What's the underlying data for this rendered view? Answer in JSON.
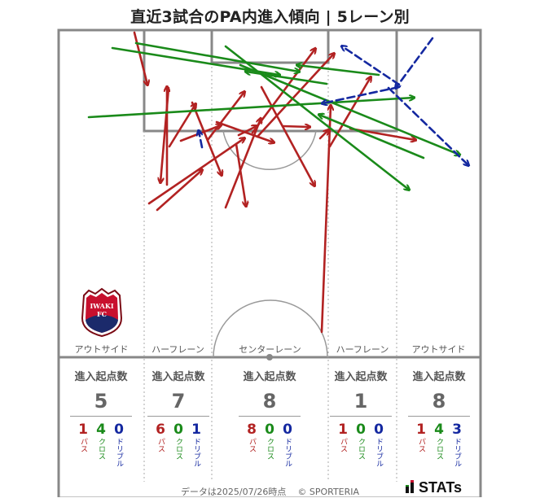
{
  "title": "直近3試合のPA内進入傾向 | 5レーン別",
  "footer": {
    "date_text": "データは2025/07/26時点",
    "copyright": "© SPORTERIA",
    "brand": "STATs"
  },
  "crest": {
    "text_top": "IWAKI",
    "text_bottom": "FC",
    "colors": {
      "primary": "#c8102e",
      "secondary": "#1b2a6b"
    }
  },
  "legend_colors": {
    "pass": "#b22222",
    "cross": "#1a8a1a",
    "dribble": "#1428a0"
  },
  "lanes": [
    {
      "id": "out-left",
      "label": "アウトサイド",
      "heading": "進入起点数",
      "total": "5",
      "breakdown": [
        {
          "value": "1",
          "type": "パス"
        },
        {
          "value": "4",
          "type": "クロス"
        },
        {
          "value": "0",
          "type": "ドリブル"
        }
      ]
    },
    {
      "id": "half-left",
      "label": "ハーフレーン",
      "heading": "進入起点数",
      "total": "7",
      "breakdown": [
        {
          "value": "6",
          "type": "パス"
        },
        {
          "value": "0",
          "type": "クロス"
        },
        {
          "value": "1",
          "type": "ドリブル"
        }
      ]
    },
    {
      "id": "center",
      "label": "センターレーン",
      "heading": "進入起点数",
      "total": "8",
      "breakdown": [
        {
          "value": "8",
          "type": "パス"
        },
        {
          "value": "0",
          "type": "クロス"
        },
        {
          "value": "0",
          "type": "ドリブル"
        }
      ]
    },
    {
      "id": "half-right",
      "label": "ハーフレーン",
      "heading": "進入起点数",
      "total": "1",
      "breakdown": [
        {
          "value": "1",
          "type": "パス"
        },
        {
          "value": "0",
          "type": "クロス"
        },
        {
          "value": "0",
          "type": "ドリブル"
        }
      ]
    },
    {
      "id": "out-right",
      "label": "アウトサイド",
      "heading": "進入起点数",
      "total": "8",
      "breakdown": [
        {
          "value": "1",
          "type": "パス"
        },
        {
          "value": "4",
          "type": "クロス"
        },
        {
          "value": "3",
          "type": "ドリブル"
        }
      ]
    }
  ]
}
